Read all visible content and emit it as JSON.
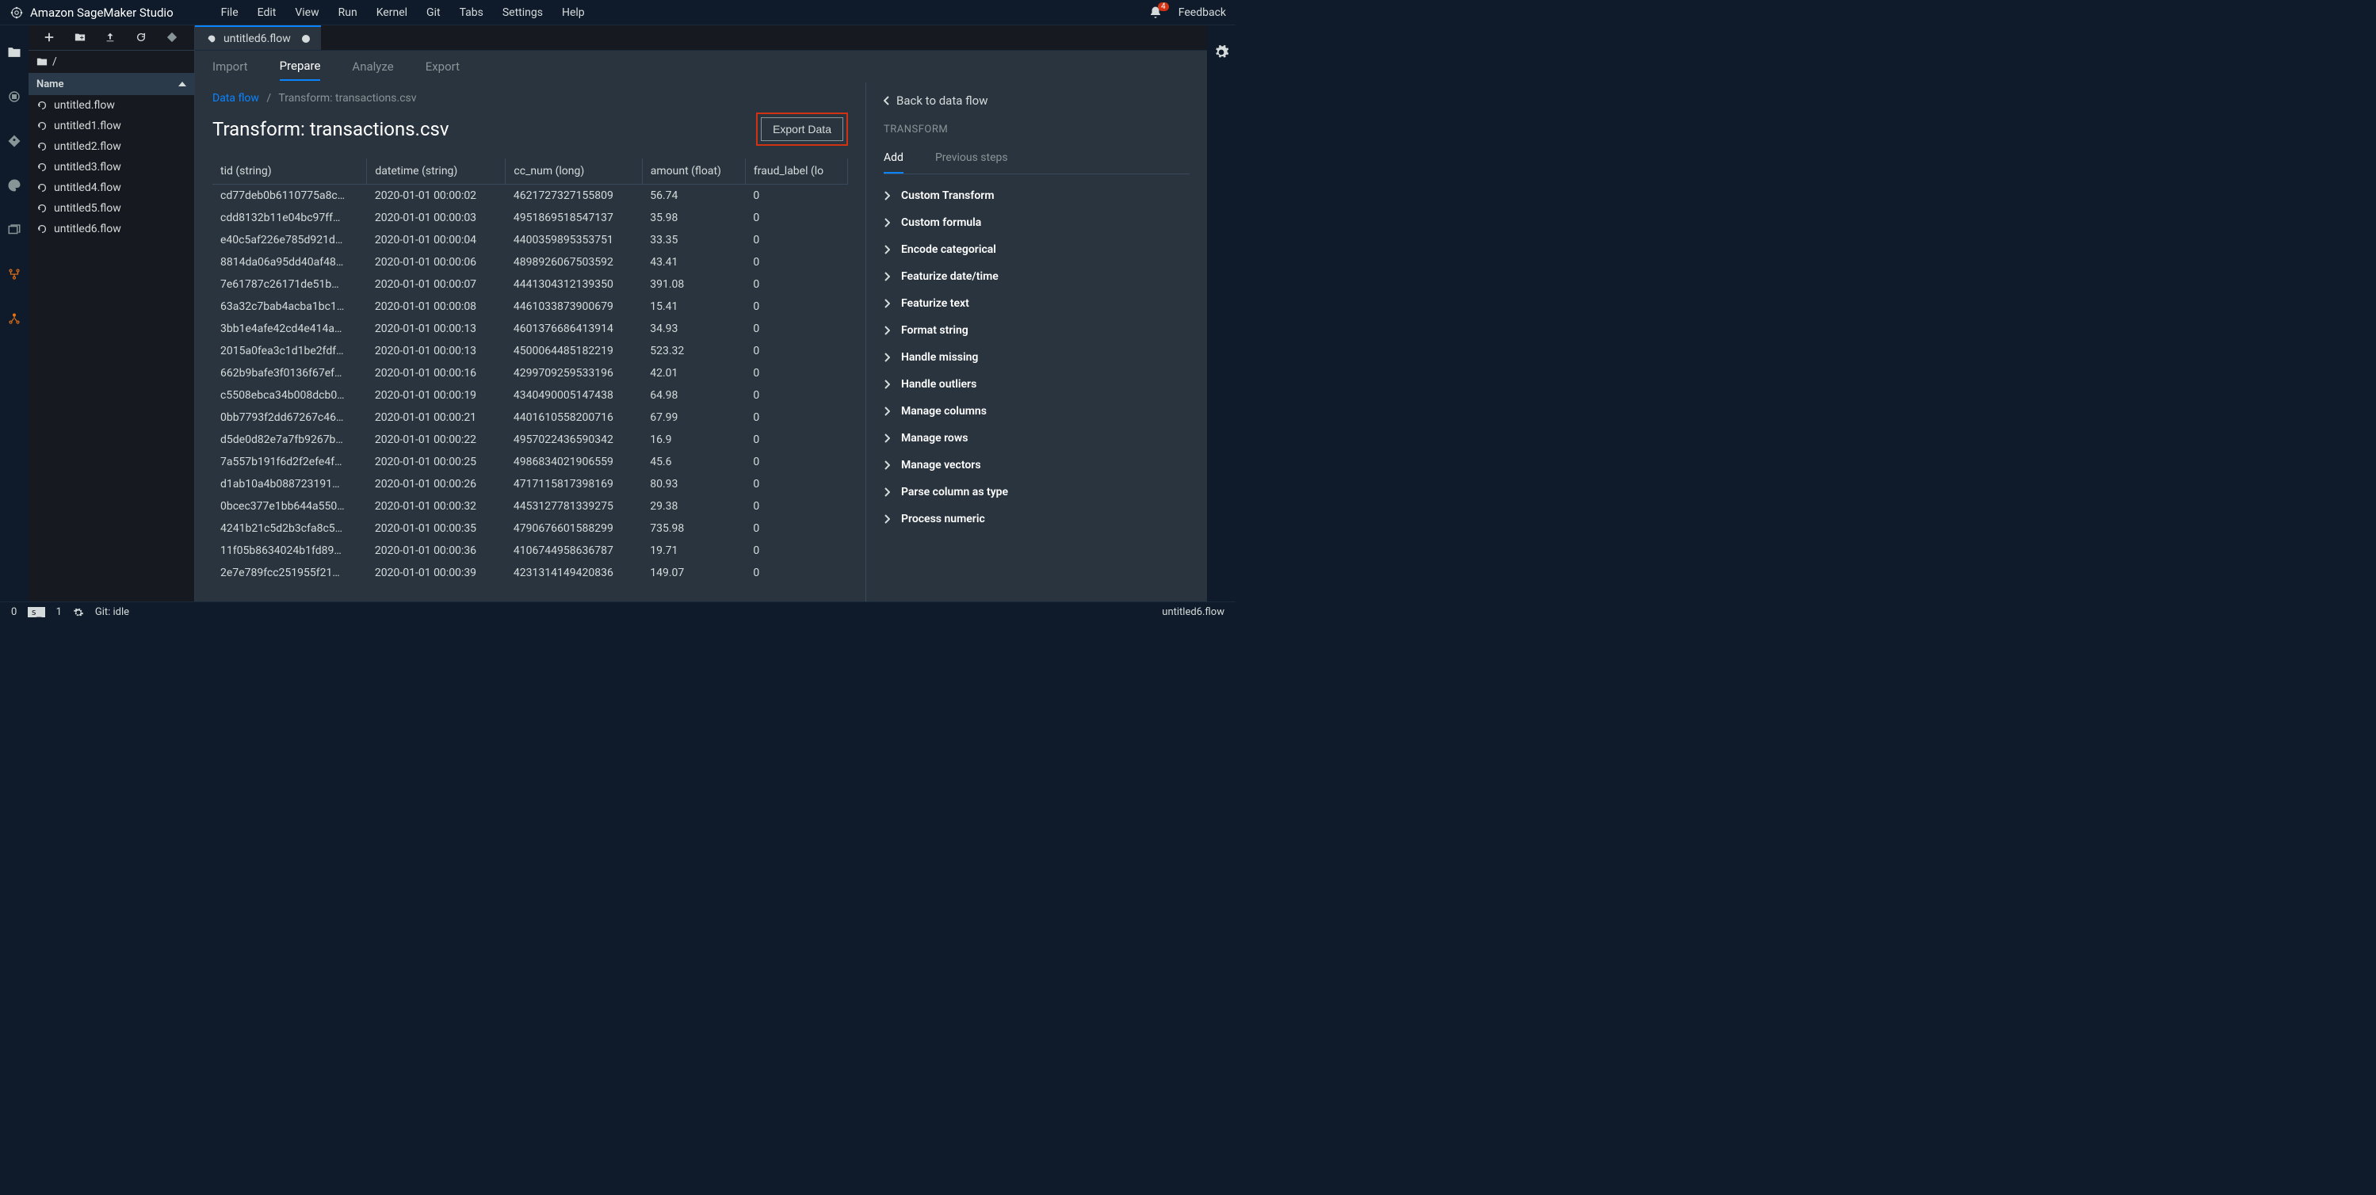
{
  "app": {
    "title": "Amazon SageMaker Studio"
  },
  "menu": {
    "items": [
      "File",
      "Edit",
      "View",
      "Run",
      "Kernel",
      "Git",
      "Tabs",
      "Settings",
      "Help"
    ]
  },
  "header": {
    "notification_count": "4",
    "feedback": "Feedback"
  },
  "filebrowser": {
    "breadcrumb_root": "/",
    "header": "Name",
    "files": [
      "untitled.flow",
      "untitled1.flow",
      "untitled2.flow",
      "untitled3.flow",
      "untitled4.flow",
      "untitled5.flow",
      "untitled6.flow"
    ]
  },
  "tab": {
    "label": "untitled6.flow"
  },
  "subtabs": {
    "items": [
      "Import",
      "Prepare",
      "Analyze",
      "Export"
    ],
    "active": 1
  },
  "breadcrumb": {
    "link": "Data flow",
    "current": "Transform: transactions.csv"
  },
  "page": {
    "title": "Transform: transactions.csv",
    "export_button": "Export Data"
  },
  "table": {
    "columns": [
      "tid (string)",
      "datetime (string)",
      "cc_num (long)",
      "amount (float)",
      "fraud_label (lo"
    ],
    "rows": [
      [
        "cd77deb0b6110775a8c…",
        "2020-01-01 00:00:02",
        "4621727327155809",
        "56.74",
        "0"
      ],
      [
        "cdd8132b11e04bc97ff…",
        "2020-01-01 00:00:03",
        "4951869518547137",
        "35.98",
        "0"
      ],
      [
        "e40c5af226e785d921d…",
        "2020-01-01 00:00:04",
        "4400359895353751",
        "33.35",
        "0"
      ],
      [
        "8814da06a95dd40af48…",
        "2020-01-01 00:00:06",
        "4898926067503592",
        "43.41",
        "0"
      ],
      [
        "7e61787c26171de51b…",
        "2020-01-01 00:00:07",
        "4441304312139350",
        "391.08",
        "0"
      ],
      [
        "63a32c7bab4acba1bc1…",
        "2020-01-01 00:00:08",
        "4461033873900679",
        "15.41",
        "0"
      ],
      [
        "3bb1e4afe42cd4e414a…",
        "2020-01-01 00:00:13",
        "4601376686413914",
        "34.93",
        "0"
      ],
      [
        "2015a0fea3c1d1be2fdf…",
        "2020-01-01 00:00:13",
        "4500064485182219",
        "523.32",
        "0"
      ],
      [
        "662b9bafe3f0136f67ef…",
        "2020-01-01 00:00:16",
        "4299709259533196",
        "42.01",
        "0"
      ],
      [
        "c5508ebca34b008dcb0…",
        "2020-01-01 00:00:19",
        "4340490005147438",
        "64.98",
        "0"
      ],
      [
        "0bb7793f2dd67267c46…",
        "2020-01-01 00:00:21",
        "4401610558200716",
        "67.99",
        "0"
      ],
      [
        "d5de0d82e7a7fb9267b…",
        "2020-01-01 00:00:22",
        "4957022436590342",
        "16.9",
        "0"
      ],
      [
        "7a557b191f6d2f2efe4f…",
        "2020-01-01 00:00:25",
        "4986834021906559",
        "45.6",
        "0"
      ],
      [
        "d1ab10a4b088723191…",
        "2020-01-01 00:00:26",
        "4717115817398169",
        "80.93",
        "0"
      ],
      [
        "0bcec377e1bb644a550…",
        "2020-01-01 00:00:32",
        "4453127781339275",
        "29.38",
        "0"
      ],
      [
        "4241b21c5d2b3cfa8c5…",
        "2020-01-01 00:00:35",
        "4790676601588299",
        "735.98",
        "0"
      ],
      [
        "11f05b8634024b1fd89…",
        "2020-01-01 00:00:36",
        "4106744958636787",
        "19.71",
        "0"
      ],
      [
        "2e7e789fcc251955f21…",
        "2020-01-01 00:00:39",
        "4231314149420836",
        "149.07",
        "0"
      ]
    ]
  },
  "rightpane": {
    "back": "Back to data flow",
    "section": "TRANSFORM",
    "tabs": [
      "Add",
      "Previous steps"
    ],
    "transforms": [
      "Custom Transform",
      "Custom formula",
      "Encode categorical",
      "Featurize date/time",
      "Featurize text",
      "Format string",
      "Handle missing",
      "Handle outliers",
      "Manage columns",
      "Manage rows",
      "Manage vectors",
      "Parse column as type",
      "Process numeric"
    ]
  },
  "statusbar": {
    "left_num1": "0",
    "left_num2": "1",
    "git": "Git: idle",
    "right": "untitled6.flow"
  }
}
